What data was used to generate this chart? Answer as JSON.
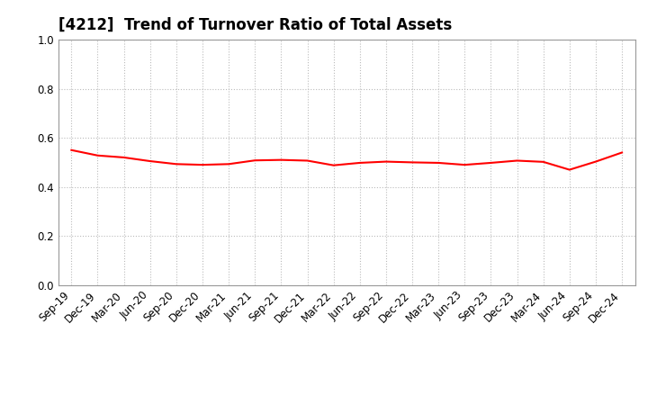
{
  "title": "[4212]  Trend of Turnover Ratio of Total Assets",
  "x_labels": [
    "Sep-19",
    "Dec-19",
    "Mar-20",
    "Jun-20",
    "Sep-20",
    "Dec-20",
    "Mar-21",
    "Jun-21",
    "Sep-21",
    "Dec-21",
    "Mar-22",
    "Jun-22",
    "Sep-22",
    "Dec-22",
    "Mar-23",
    "Jun-23",
    "Sep-23",
    "Dec-23",
    "Mar-24",
    "Jun-24",
    "Sep-24",
    "Dec-24"
  ],
  "y_values": [
    0.55,
    0.528,
    0.52,
    0.505,
    0.493,
    0.49,
    0.493,
    0.508,
    0.51,
    0.507,
    0.488,
    0.498,
    0.503,
    0.5,
    0.498,
    0.49,
    0.498,
    0.507,
    0.502,
    0.47,
    0.503,
    0.54
  ],
  "line_color": "#FF0000",
  "line_width": 1.5,
  "ylim": [
    0.0,
    1.0
  ],
  "yticks": [
    0.0,
    0.2,
    0.4,
    0.6,
    0.8,
    1.0
  ],
  "background_color": "#ffffff",
  "grid_color": "#bbbbbb",
  "title_fontsize": 12,
  "tick_fontsize": 8.5
}
